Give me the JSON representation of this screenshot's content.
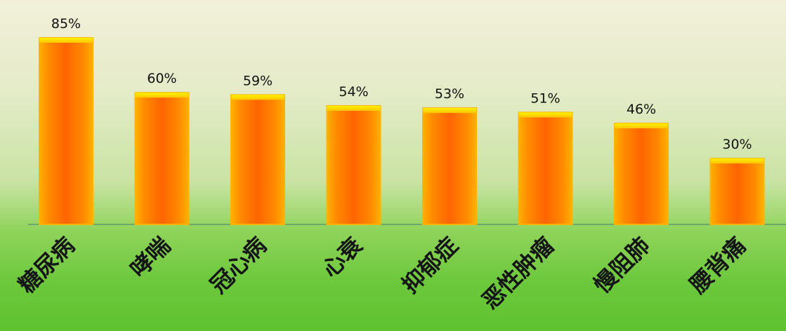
{
  "chart_data": {
    "type": "bar",
    "categories": [
      "糖尿病",
      "哮喘",
      "冠心病",
      "心衰",
      "抑郁症",
      "恶性肿瘤",
      "慢阻肺",
      "腰背痛"
    ],
    "values": [
      85,
      60,
      59,
      54,
      53,
      51,
      46,
      30
    ],
    "value_labels": [
      "85%",
      "60%",
      "59%",
      "54%",
      "53%",
      "51%",
      "46%",
      "30%"
    ],
    "ylim": [
      0,
      85
    ],
    "grid": false,
    "legend": "none",
    "colors": {
      "bar_top": "#ffe600",
      "bar_mid": "#ff9a00",
      "bar_edge": "#ffb300",
      "bar_core": "#ff6a00",
      "baseline": "#6aa96a"
    }
  }
}
